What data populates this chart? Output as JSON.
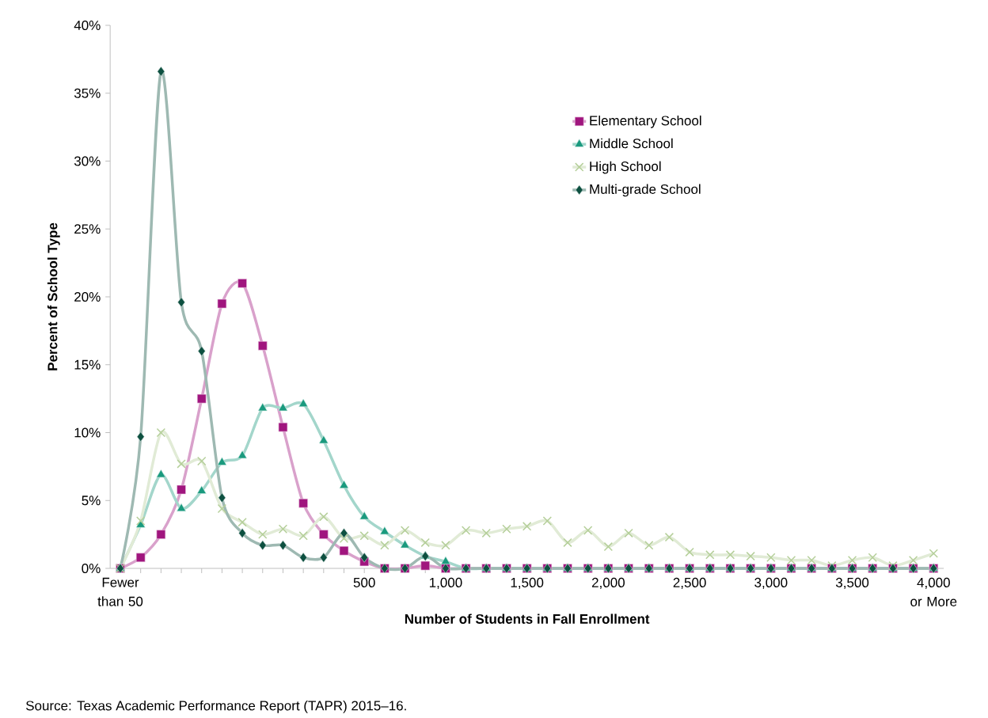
{
  "chart_data": {
    "type": "line",
    "xlabel": "Number of Students in Fall Enrollment",
    "ylabel": "Percent of School Type",
    "categories": [
      "Fewer than 50",
      null,
      null,
      null,
      null,
      null,
      null,
      null,
      null,
      null,
      null,
      null,
      "500",
      null,
      null,
      null,
      "1,000",
      null,
      null,
      null,
      "1,500",
      null,
      null,
      null,
      "2,000",
      null,
      null,
      null,
      "2,500",
      null,
      null,
      null,
      "3,000",
      null,
      null,
      null,
      "3,500",
      null,
      null,
      null,
      "4,000 or More"
    ],
    "series": [
      {
        "name": "Elementary School",
        "color": "#a0157e",
        "marker": "square",
        "values": [
          0,
          0.8,
          2.5,
          5.8,
          12.5,
          19.5,
          21.0,
          16.4,
          10.4,
          4.8,
          2.5,
          1.3,
          0.5,
          0,
          0,
          0.2,
          0,
          0,
          0,
          0,
          0,
          0,
          0,
          0,
          0,
          0,
          0,
          0,
          0,
          0,
          0,
          0,
          0,
          0,
          0,
          0,
          0,
          0,
          0,
          0,
          0
        ]
      },
      {
        "name": "Middle School",
        "color": "#1a9a7e",
        "marker": "triangle",
        "values": [
          0,
          3.2,
          6.9,
          4.4,
          5.7,
          7.8,
          8.3,
          11.8,
          11.8,
          12.1,
          9.4,
          6.1,
          3.8,
          2.7,
          1.7,
          0.9,
          0.5,
          0,
          0,
          0,
          0,
          0,
          0,
          0,
          0,
          0,
          0,
          0,
          0,
          0,
          0,
          0,
          0,
          0,
          0,
          0,
          0,
          0,
          0,
          0,
          0
        ]
      },
      {
        "name": "High School",
        "color": "#b5cf9a",
        "marker": "cross",
        "values": [
          0,
          3.5,
          10.0,
          7.7,
          7.9,
          4.4,
          3.4,
          2.5,
          2.9,
          2.4,
          3.8,
          2.2,
          2.4,
          1.7,
          2.8,
          1.9,
          1.7,
          2.8,
          2.6,
          2.9,
          3.1,
          3.5,
          1.9,
          2.8,
          1.6,
          2.6,
          1.7,
          2.3,
          1.2,
          1.0,
          1.0,
          0.9,
          0.8,
          0.6,
          0.6,
          0.2,
          0.6,
          0.8,
          0.2,
          0.6,
          1.1
        ]
      },
      {
        "name": "Multi-grade School",
        "color": "#0d5040",
        "marker": "diamond",
        "values": [
          0,
          9.7,
          36.6,
          19.6,
          16.0,
          5.2,
          2.6,
          1.7,
          1.7,
          0.8,
          0.8,
          2.6,
          0.8,
          0,
          0,
          0.9,
          0,
          0,
          0,
          0,
          0,
          0,
          0,
          0,
          0,
          0,
          0,
          0,
          0,
          0,
          0,
          0,
          0,
          0,
          0,
          0,
          0,
          0,
          0,
          0,
          0
        ]
      }
    ],
    "ylim": [
      0,
      40
    ],
    "yticks": [
      {
        "value": 0,
        "label": "0%"
      },
      {
        "value": 5,
        "label": "5%"
      },
      {
        "value": 10,
        "label": "10%"
      },
      {
        "value": 15,
        "label": "15%"
      },
      {
        "value": 20,
        "label": "20%"
      },
      {
        "value": 25,
        "label": "25%"
      },
      {
        "value": 30,
        "label": "30%"
      },
      {
        "value": 35,
        "label": "35%"
      },
      {
        "value": 40,
        "label": "40%"
      }
    ],
    "grid": false,
    "legend": "top right",
    "annotations": [
      "Source: Texas Academic Performance Report (TAPR) 2015–16."
    ]
  }
}
